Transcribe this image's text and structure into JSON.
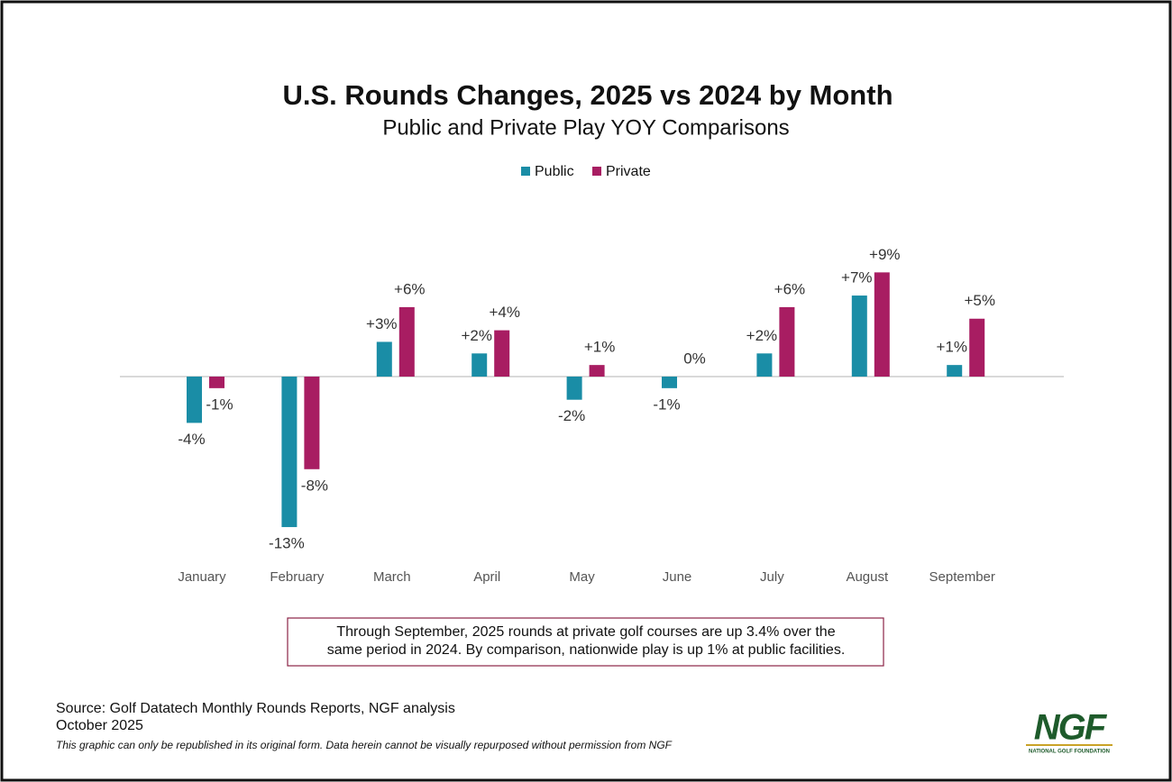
{
  "chart_data": {
    "type": "bar",
    "title": "U.S. Rounds Changes, 2025 vs 2024 by Month",
    "subtitle": "Public and Private Play YOY Comparisons",
    "categories": [
      "January",
      "February",
      "March",
      "April",
      "May",
      "June",
      "July",
      "August",
      "September"
    ],
    "series": [
      {
        "name": "Public",
        "color": "#1a8da6",
        "values": [
          -4,
          -13,
          3,
          2,
          -2,
          -1,
          2,
          7,
          1
        ],
        "value_labels": [
          "-4%",
          "-13%",
          "+3%",
          "+2%",
          "-2%",
          "-1%",
          "+2%",
          "+7%",
          "+1%"
        ]
      },
      {
        "name": "Private",
        "color": "#a81d62",
        "values": [
          -1,
          -8,
          6,
          4,
          1,
          0,
          6,
          9,
          5
        ],
        "value_labels": [
          "-1%",
          "-8%",
          "+6%",
          "+4%",
          "+1%",
          "0%",
          "+6%",
          "+9%",
          "+5%"
        ]
      }
    ],
    "legend": "top",
    "note_lines": [
      "Through September, 2025 rounds at private golf courses are up 3.4% over the",
      "same period in 2024. By comparison, nationwide play is up 1% at public facilities."
    ],
    "source": "Source: Golf Datatech Monthly Rounds Reports, NGF analysis",
    "date": "October 2025",
    "disclaimer": "This graphic can only be republished in its original form. Data herein cannot be visually repurposed without permission from NGF",
    "logo": {
      "text": "NGF",
      "subtext": "NATIONAL GOLF FOUNDATION"
    }
  }
}
